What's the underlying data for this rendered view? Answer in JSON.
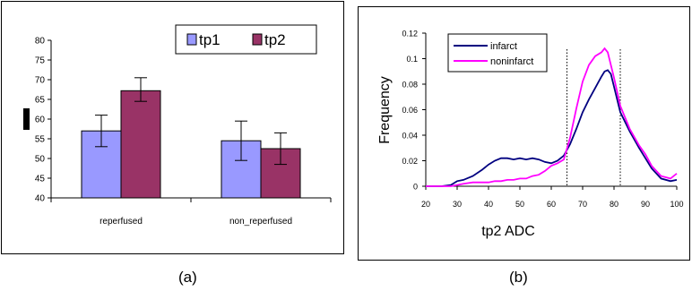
{
  "captions": {
    "a": "(a)",
    "b": "(b)"
  },
  "chart_data": [
    {
      "type": "bar",
      "title": "",
      "ylabel": "",
      "xlabel": "",
      "categories": [
        "reperfused",
        "non_reperfused"
      ],
      "series": [
        {
          "name": "tp1",
          "values": [
            57.0,
            54.5
          ],
          "error_low": [
            53.0,
            49.5
          ],
          "error_high": [
            61.0,
            59.5
          ],
          "color": "#9999ff"
        },
        {
          "name": "tp2",
          "values": [
            67.2,
            52.5
          ],
          "error_low": [
            64.5,
            48.5
          ],
          "error_high": [
            70.5,
            56.5
          ],
          "color": "#993366"
        }
      ],
      "ylim": [
        40,
        80
      ],
      "yticks": [
        "40",
        "45",
        "50",
        "55",
        "60",
        "65",
        "70",
        "75",
        "80"
      ],
      "legend": "top-right",
      "grid": false
    },
    {
      "type": "line",
      "title": "",
      "xlabel": "tp2 ADC",
      "ylabel": "Frequency",
      "xlim": [
        20,
        100
      ],
      "ylim": [
        0,
        0.12
      ],
      "xticks": [
        "20",
        "30",
        "40",
        "50",
        "60",
        "70",
        "80",
        "90",
        "100"
      ],
      "yticks": [
        "0",
        "0.02",
        "0.04",
        "0.06",
        "0.08",
        "0.1",
        "0.12"
      ],
      "vlines": [
        65,
        82
      ],
      "legend": "top-left",
      "grid": false,
      "series": [
        {
          "name": "infarct",
          "color": "#000080",
          "x": [
            20,
            25,
            28,
            30,
            32,
            35,
            38,
            40,
            42,
            44,
            46,
            48,
            50,
            52,
            54,
            56,
            58,
            60,
            62,
            64,
            66,
            68,
            70,
            72,
            74,
            76,
            77,
            78,
            79,
            80,
            82,
            85,
            88,
            90,
            92,
            95,
            98,
            100
          ],
          "y": [
            0,
            0,
            0.001,
            0.004,
            0.005,
            0.008,
            0.013,
            0.017,
            0.02,
            0.022,
            0.022,
            0.021,
            0.022,
            0.021,
            0.022,
            0.021,
            0.019,
            0.018,
            0.02,
            0.024,
            0.033,
            0.045,
            0.058,
            0.068,
            0.077,
            0.086,
            0.09,
            0.091,
            0.088,
            0.078,
            0.058,
            0.043,
            0.03,
            0.022,
            0.014,
            0.006,
            0.004,
            0.005
          ]
        },
        {
          "name": "noninfarct",
          "color": "#ff00ff",
          "x": [
            20,
            25,
            28,
            30,
            32,
            35,
            38,
            40,
            42,
            44,
            46,
            48,
            50,
            52,
            54,
            56,
            58,
            60,
            62,
            64,
            66,
            68,
            70,
            72,
            74,
            76,
            77,
            78,
            79,
            80,
            82,
            85,
            88,
            90,
            92,
            95,
            98,
            100
          ],
          "y": [
            0,
            0,
            0,
            0.001,
            0.002,
            0.003,
            0.003,
            0.003,
            0.004,
            0.004,
            0.005,
            0.005,
            0.006,
            0.006,
            0.008,
            0.009,
            0.012,
            0.016,
            0.018,
            0.021,
            0.038,
            0.061,
            0.082,
            0.095,
            0.102,
            0.105,
            0.108,
            0.105,
            0.095,
            0.085,
            0.063,
            0.045,
            0.032,
            0.025,
            0.016,
            0.008,
            0.006,
            0.01
          ]
        }
      ]
    }
  ]
}
